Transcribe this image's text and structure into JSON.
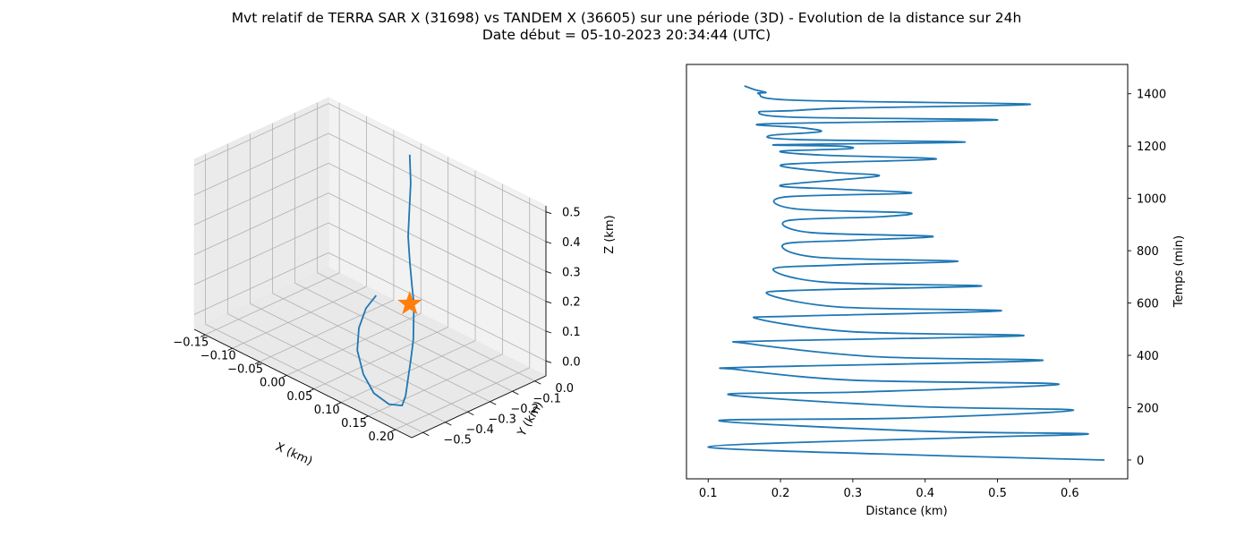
{
  "figure": {
    "title_line1": "Mvt relatif de TERRA SAR X (31698) vs TANDEM X (36605) sur une période (3D) - Evolution de la distance sur 24h",
    "title_line2": "Date début = 05-10-2023 20:34:44 (UTC)"
  },
  "colors": {
    "series": "#1f77b4",
    "marker": "#ff7f0e",
    "pane": "#f2f2f2",
    "grid": "#b0b0b0"
  },
  "chart_data": [
    {
      "type": "line",
      "projection": "3d",
      "xlabel": "X (km)",
      "ylabel": "Y (km)",
      "zlabel": "Z (km)",
      "xlim": [
        -0.17,
        0.23
      ],
      "ylim": [
        -0.55,
        0.05
      ],
      "zlim": [
        -0.05,
        0.52
      ],
      "x_ticks": [
        "−0.15",
        "−0.10",
        "−0.05",
        "0.00",
        "0.05",
        "0.10",
        "0.15",
        "0.20"
      ],
      "y_ticks": [
        "0.0",
        "−0.1",
        "−0.2",
        "−0.3",
        "−0.4",
        "−0.5"
      ],
      "z_ticks": [
        "0.0",
        "0.1",
        "0.2",
        "0.3",
        "0.4",
        "0.5"
      ],
      "grid": true,
      "series": [
        {
          "marker": "line",
          "points": [
            [
              0.0,
              0.0,
              0.5
            ],
            [
              0.01,
              -0.02,
              0.42
            ],
            [
              0.02,
              -0.05,
              0.35
            ],
            [
              0.03,
              -0.08,
              0.28
            ],
            [
              0.05,
              -0.12,
              0.22
            ],
            [
              0.07,
              -0.16,
              0.18
            ],
            [
              0.09,
              -0.2,
              0.15
            ],
            [
              0.11,
              -0.25,
              0.12
            ],
            [
              0.13,
              -0.3,
              0.1
            ],
            [
              0.15,
              -0.36,
              0.07
            ],
            [
              0.17,
              -0.42,
              0.05
            ],
            [
              0.19,
              -0.48,
              0.03
            ],
            [
              0.2,
              -0.52,
              0.02
            ],
            [
              0.18,
              -0.53,
              0.01
            ],
            [
              0.14,
              -0.5,
              0.0
            ],
            [
              0.1,
              -0.45,
              0.01
            ],
            [
              0.06,
              -0.38,
              0.03
            ],
            [
              0.03,
              -0.3,
              0.05
            ],
            [
              0.01,
              -0.22,
              0.07
            ],
            [
              0.0,
              -0.15,
              0.08
            ]
          ]
        },
        {
          "marker": "star",
          "points": [
            [
              0.0,
              0.0,
              0.0
            ]
          ]
        }
      ]
    },
    {
      "type": "line",
      "xlabel": "Distance (km)",
      "ylabel": "Temps (min)",
      "xlim": [
        0.07,
        0.68
      ],
      "ylim": [
        -72,
        1512
      ],
      "x_ticks": [
        0.1,
        0.2,
        0.3,
        0.4,
        0.5,
        0.6
      ],
      "y_ticks": [
        0,
        200,
        400,
        600,
        800,
        1000,
        1200,
        1400
      ],
      "y_axis_side": "right",
      "grid": false,
      "series": [
        {
          "x": [
            0.648,
            0.44,
            0.1,
            0.45,
            0.625,
            0.4,
            0.115,
            0.37,
            0.605,
            0.38,
            0.128,
            0.31,
            0.585,
            0.3,
            0.142,
            0.16,
            0.56,
            0.33,
            0.155,
            0.18,
            0.535,
            0.3,
            0.168,
            0.22,
            0.505,
            0.28,
            0.182,
            0.24,
            0.478,
            0.26,
            0.19,
            0.275,
            0.445,
            0.25,
            0.205,
            0.305,
            0.41,
            0.24,
            0.21,
            0.34,
            0.375,
            0.22,
            0.205,
            0.38,
            0.28,
            0.2,
            0.335,
            0.27,
            0.205,
            0.415,
            0.26,
            0.2,
            0.295,
            0.28,
            0.195,
            0.455,
            0.22,
            0.185,
            0.255,
            0.23,
            0.18,
            0.5,
            0.22,
            0.17,
            0.215,
            0.29,
            0.545,
            0.22,
            0.17,
            0.18,
            0.165,
            0.15
          ],
          "y": [
            0,
            15,
            50,
            85,
            100,
            110,
            150,
            160,
            190,
            205,
            250,
            260,
            290,
            305,
            345,
            355,
            380,
            395,
            445,
            455,
            475,
            490,
            540,
            550,
            570,
            585,
            635,
            650,
            665,
            680,
            730,
            745,
            760,
            775,
            825,
            840,
            855,
            870,
            915,
            930,
            945,
            960,
            1005,
            1020,
            1035,
            1050,
            1085,
            1100,
            1130,
            1150,
            1165,
            1180,
            1190,
            1200,
            1205,
            1215,
            1225,
            1240,
            1255,
            1270,
            1285,
            1300,
            1310,
            1330,
            1335,
            1345,
            1360,
            1375,
            1400,
            1405,
            1415,
            1430
          ]
        }
      ]
    }
  ]
}
